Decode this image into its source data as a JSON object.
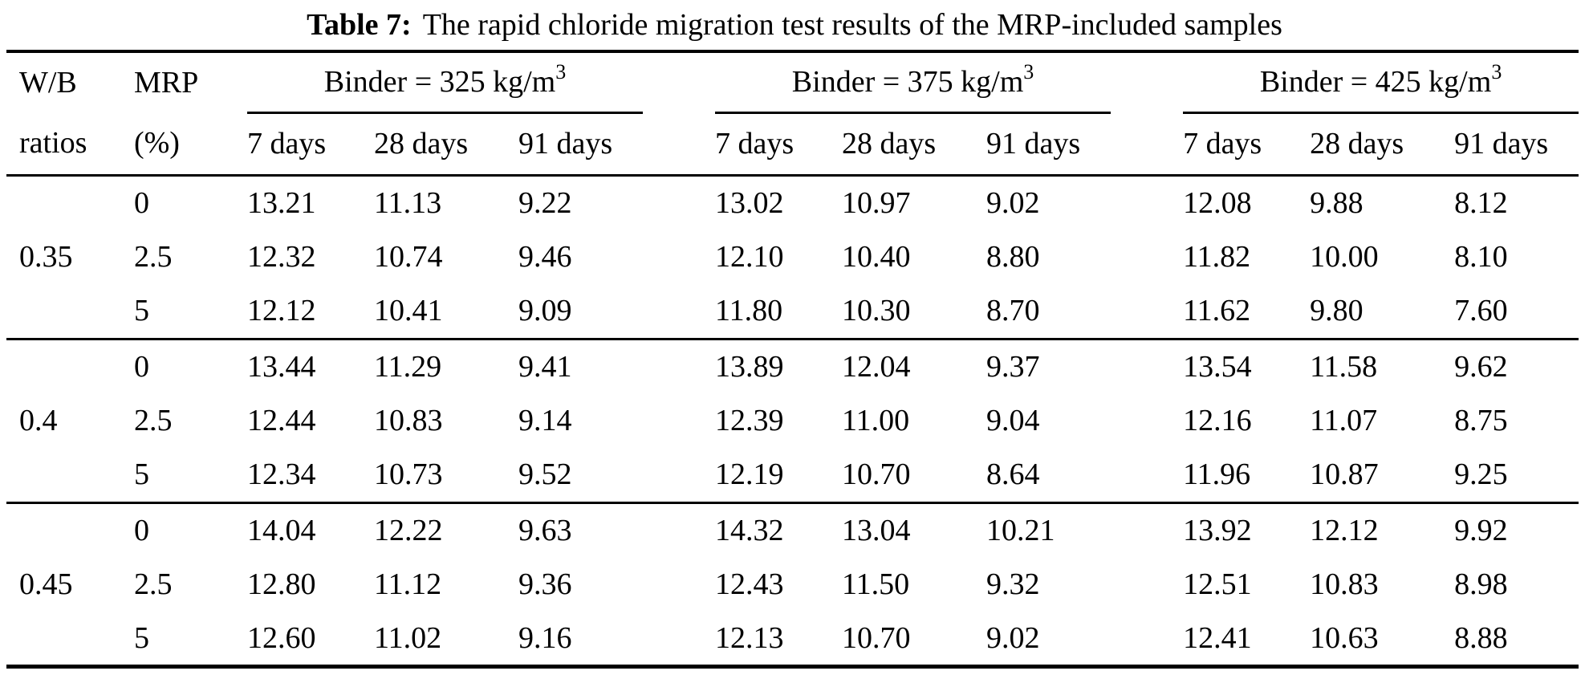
{
  "title": {
    "label": "Table 7:",
    "text": "The rapid chloride migration test results of the MRP-included samples"
  },
  "header": {
    "col1_line1": "W/B",
    "col1_line2": "ratios",
    "col2_line1": "MRP",
    "col2_line2": "(%)",
    "groups": [
      {
        "label": "Binder = 325 kg/m",
        "sup": "3"
      },
      {
        "label": "Binder = 375 kg/m",
        "sup": "3"
      },
      {
        "label": "Binder = 425 kg/m",
        "sup": "3"
      }
    ],
    "day_labels": [
      "7 days",
      "28 days",
      "91 days"
    ]
  },
  "body": {
    "blocks": [
      {
        "wb": "0.35",
        "rows": [
          {
            "mrp": "0",
            "values": [
              "13.21",
              "11.13",
              "9.22",
              "13.02",
              "10.97",
              "9.02",
              "12.08",
              "9.88",
              "8.12"
            ]
          },
          {
            "mrp": "2.5",
            "values": [
              "12.32",
              "10.74",
              "9.46",
              "12.10",
              "10.40",
              "8.80",
              "11.82",
              "10.00",
              "8.10"
            ]
          },
          {
            "mrp": "5",
            "values": [
              "12.12",
              "10.41",
              "9.09",
              "11.80",
              "10.30",
              "8.70",
              "11.62",
              "9.80",
              "7.60"
            ]
          }
        ]
      },
      {
        "wb": "0.4",
        "rows": [
          {
            "mrp": "0",
            "values": [
              "13.44",
              "11.29",
              "9.41",
              "13.89",
              "12.04",
              "9.37",
              "13.54",
              "11.58",
              "9.62"
            ]
          },
          {
            "mrp": "2.5",
            "values": [
              "12.44",
              "10.83",
              "9.14",
              "12.39",
              "11.00",
              "9.04",
              "12.16",
              "11.07",
              "8.75"
            ]
          },
          {
            "mrp": "5",
            "values": [
              "12.34",
              "10.73",
              "9.52",
              "12.19",
              "10.70",
              "8.64",
              "11.96",
              "10.87",
              "9.25"
            ]
          }
        ]
      },
      {
        "wb": "0.45",
        "rows": [
          {
            "mrp": "0",
            "values": [
              "14.04",
              "12.22",
              "9.63",
              "14.32",
              "13.04",
              "10.21",
              "13.92",
              "12.12",
              "9.92"
            ]
          },
          {
            "mrp": "2.5",
            "values": [
              "12.80",
              "11.12",
              "9.36",
              "12.43",
              "11.50",
              "9.32",
              "12.51",
              "10.83",
              "8.98"
            ]
          },
          {
            "mrp": "5",
            "values": [
              "12.60",
              "11.02",
              "9.16",
              "12.13",
              "10.70",
              "9.02",
              "12.41",
              "10.63",
              "8.88"
            ]
          }
        ]
      }
    ]
  }
}
